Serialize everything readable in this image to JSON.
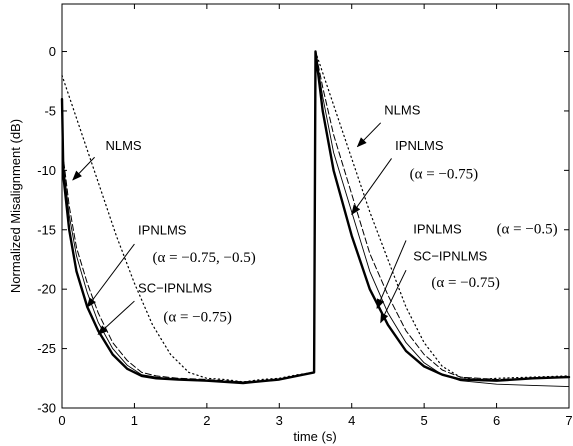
{
  "chart_data": {
    "type": "line",
    "title": "",
    "xlabel": "time (s)",
    "ylabel": "Normalized Misalignment (dB)",
    "xlim": [
      0,
      7
    ],
    "ylim": [
      -30,
      4
    ],
    "xticks": [
      "0",
      "1",
      "2",
      "3",
      "4",
      "5",
      "6",
      "7"
    ],
    "yticks": [
      "0",
      "-5",
      "-10",
      "-15",
      "-20",
      "-25",
      "-30"
    ],
    "grid": false,
    "legend": "none",
    "series": [
      {
        "style": "dotted",
        "color": "#000000",
        "x": [
          0,
          0.25,
          0.5,
          0.75,
          1.0,
          1.25,
          1.5,
          1.75,
          2.0,
          2.25,
          2.5,
          2.75,
          3.0,
          3.25,
          3.48,
          3.5,
          3.75,
          4.0,
          4.25,
          4.5,
          4.75,
          5.0,
          5.25,
          5.5,
          5.75,
          6.0,
          6.5,
          7.0
        ],
        "y": [
          -2,
          -6.5,
          -11,
          -15.5,
          -19.5,
          -23,
          -25.5,
          -27,
          -27.5,
          -27.6,
          -27.8,
          -27.6,
          -27.5,
          -27.2,
          -27,
          0,
          -4.5,
          -9,
          -13.5,
          -17.5,
          -21.5,
          -24.5,
          -26.5,
          -27.4,
          -27.6,
          -27.5,
          -27.4,
          -27.3
        ]
      },
      {
        "style": "dashed",
        "color": "#000000",
        "x": [
          0,
          0.02,
          0.1,
          0.2,
          0.35,
          0.5,
          0.7,
          0.9,
          1.1,
          1.3,
          1.6,
          2.0,
          2.5,
          3.0,
          3.48,
          3.5,
          3.6,
          3.75,
          4.0,
          4.25,
          4.5,
          4.75,
          5.0,
          5.25,
          5.5,
          6.0,
          6.5,
          7.0
        ],
        "y": [
          -4,
          -9,
          -13,
          -16.5,
          -19.5,
          -22,
          -24.5,
          -26,
          -27,
          -27.3,
          -27.5,
          -27.6,
          -27.8,
          -27.6,
          -27,
          0,
          -3,
          -7,
          -12,
          -17,
          -20.5,
          -23.5,
          -25.5,
          -26.8,
          -27.4,
          -27.6,
          -27.5,
          -27.4
        ]
      },
      {
        "style": "thin",
        "color": "#000000",
        "x": [
          0,
          0.02,
          0.1,
          0.2,
          0.35,
          0.5,
          0.7,
          0.9,
          1.1,
          1.3,
          1.6,
          2.0,
          2.5,
          3.0,
          3.48,
          3.5,
          3.6,
          3.75,
          4.0,
          4.25,
          4.5,
          4.75,
          5.0,
          5.25,
          5.5,
          6.0,
          6.5,
          7.0
        ],
        "y": [
          -4,
          -9.5,
          -13.8,
          -17.2,
          -20.3,
          -22.8,
          -25,
          -26.4,
          -27.2,
          -27.4,
          -27.6,
          -27.7,
          -27.8,
          -27.6,
          -27,
          0,
          -3.8,
          -8.5,
          -13.5,
          -18.5,
          -22,
          -24.5,
          -26.2,
          -27.2,
          -27.7,
          -28,
          -28.1,
          -28.2
        ]
      },
      {
        "style": "thick",
        "color": "#000000",
        "x": [
          0,
          0.02,
          0.1,
          0.2,
          0.35,
          0.5,
          0.7,
          0.9,
          1.1,
          1.3,
          1.6,
          2.0,
          2.5,
          3.0,
          3.48,
          3.5,
          3.6,
          3.75,
          4.0,
          4.25,
          4.5,
          4.75,
          5.0,
          5.25,
          5.5,
          6.0,
          6.5,
          7.0
        ],
        "y": [
          -4,
          -10.5,
          -15,
          -18.5,
          -21.5,
          -23.5,
          -25.5,
          -26.7,
          -27.3,
          -27.5,
          -27.6,
          -27.7,
          -27.9,
          -27.6,
          -27,
          0,
          -5,
          -10,
          -15.5,
          -20,
          -23,
          -25.2,
          -26.5,
          -27.2,
          -27.6,
          -27.7,
          -27.5,
          -27.4
        ]
      }
    ],
    "annotations": [
      {
        "name": "NLMS",
        "param": "",
        "text_at": [
          0.6,
          -8.3
        ],
        "arrow_from": [
          0.45,
          -8.9
        ],
        "arrow_to": [
          0.15,
          -10.8
        ]
      },
      {
        "name": "IPNLMS",
        "param": "(α = −0.75, −0.5)",
        "text_at": [
          1.05,
          -15.4
        ],
        "param_at": [
          1.25,
          -17.7
        ],
        "arrow_from": [
          1.0,
          -16.2
        ],
        "arrow_to": [
          0.35,
          -21.5
        ]
      },
      {
        "name": "SC−IPNLMS",
        "param": "(α = −0.75)",
        "text_at": [
          1.05,
          -20.3
        ],
        "param_at": [
          1.4,
          -22.7
        ],
        "arrow_from": [
          1.0,
          -21.0
        ],
        "arrow_to": [
          0.5,
          -23.8
        ]
      },
      {
        "name": "NLMS",
        "param": "",
        "text_at": [
          4.45,
          -5.3
        ],
        "arrow_from": [
          4.4,
          -6.0
        ],
        "arrow_to": [
          4.08,
          -8.0
        ]
      },
      {
        "name": "IPNLMS",
        "param": "(α = −0.75)",
        "text_at": [
          4.6,
          -8.3
        ],
        "param_at": [
          4.8,
          -10.7
        ],
        "arrow_from": [
          4.55,
          -9.0
        ],
        "arrow_to": [
          4.0,
          -13.7
        ]
      },
      {
        "name": "IPNLMS",
        "param": "(α = −0.5)",
        "text_at": [
          4.85,
          -15.3
        ],
        "param_at": [
          6.0,
          -15.3
        ],
        "arrow_from": [
          4.75,
          -15.9
        ],
        "arrow_to": [
          4.35,
          -21.6
        ]
      },
      {
        "name": "SC−IPNLMS",
        "param": "(α = −0.75)",
        "text_at": [
          4.85,
          -17.6
        ],
        "param_at": [
          5.1,
          -19.8
        ],
        "arrow_from": [
          4.75,
          -18.4
        ],
        "arrow_to": [
          4.4,
          -22.8
        ]
      }
    ]
  }
}
